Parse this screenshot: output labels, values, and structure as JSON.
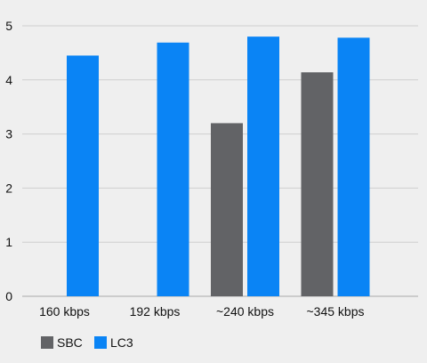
{
  "chart_data": {
    "type": "bar",
    "categories": [
      "160 kbps",
      "192 kbps",
      "~240 kbps",
      "~345 kbps"
    ],
    "series": [
      {
        "name": "SBC",
        "color": "#626366",
        "values": [
          null,
          null,
          3.2,
          4.14
        ]
      },
      {
        "name": "LC3",
        "color": "#0a84f5",
        "values": [
          4.45,
          4.69,
          4.8,
          4.78
        ]
      }
    ],
    "ylim": [
      0,
      5
    ],
    "yticks": [
      0,
      1,
      2,
      3,
      4,
      5
    ],
    "grid": true,
    "legend_position": "bottom-left"
  }
}
